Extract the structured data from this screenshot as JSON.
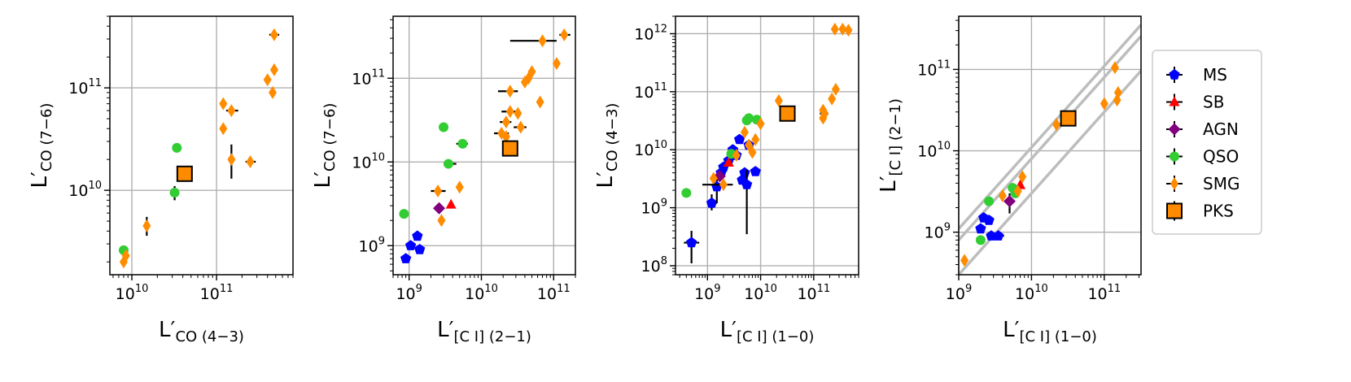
{
  "figure": {
    "type": "scatter-panels",
    "scale": "log-log"
  },
  "legend": {
    "placement": "right",
    "entries": [
      {
        "key": "MS",
        "label": "MS",
        "marker": "pentagon",
        "color": "#0000ff"
      },
      {
        "key": "SB",
        "label": "SB",
        "marker": "triangle",
        "color": "#ff0000"
      },
      {
        "key": "AGN",
        "label": "AGN",
        "marker": "diamond",
        "color": "#800080"
      },
      {
        "key": "QSO",
        "label": "QSO",
        "marker": "circle",
        "color": "#32cd32"
      },
      {
        "key": "SMG",
        "label": "SMG",
        "marker": "thin-diamond",
        "color": "#ff8c00"
      },
      {
        "key": "PKS",
        "label": "PKS",
        "marker": "square",
        "color": "#ff8c00"
      }
    ]
  },
  "chart_data": [
    {
      "type": "scatter",
      "xlabel": {
        "main": "L′",
        "sub": "CO (4−3)"
      },
      "ylabel": {
        "main": "L′",
        "sub": "CO (7−6)"
      },
      "xlim": [
        5500000000.0,
        800000000000.0
      ],
      "ylim": [
        1500000000.0,
        500000000000.0
      ],
      "xticks": [
        {
          "v": 10000000000.0,
          "base": "10",
          "exp": "10"
        },
        {
          "v": 100000000000.0,
          "base": "10",
          "exp": "11"
        }
      ],
      "yticks": [
        {
          "v": 10000000000.0,
          "base": "10",
          "exp": "10"
        },
        {
          "v": 100000000000.0,
          "base": "10",
          "exp": "11"
        }
      ],
      "diagonals": [],
      "series": {
        "QSO": [
          {
            "x": 8000000000.0,
            "y": 2600000000.0
          },
          {
            "x": 34000000000.0,
            "y": 26000000000.0
          },
          {
            "x": 32000000000.0,
            "y": 9500000000.0,
            "yerr": [
              8000000000.0,
              11000000000.0
            ]
          }
        ],
        "SMG": [
          {
            "x": 8000000000.0,
            "y": 2000000000.0
          },
          {
            "x": 8500000000.0,
            "y": 2300000000.0
          },
          {
            "x": 15000000000.0,
            "y": 4500000000.0,
            "yerr": [
              3600000000.0,
              5500000000.0
            ]
          },
          {
            "x": 120000000000.0,
            "y": 70000000000.0
          },
          {
            "x": 120000000000.0,
            "y": 40000000000.0
          },
          {
            "x": 150000000000.0,
            "y": 60000000000.0,
            "xerr": [
              130000000000.0,
              180000000000.0
            ]
          },
          {
            "x": 150000000000.0,
            "y": 20000000000.0,
            "yerr": [
              13000000000.0,
              28000000000.0
            ]
          },
          {
            "x": 250000000000.0,
            "y": 19000000000.0,
            "xerr": [
              220000000000.0,
              290000000000.0
            ]
          },
          {
            "x": 400000000000.0,
            "y": 120000000000.0
          },
          {
            "x": 460000000000.0,
            "y": 90000000000.0
          },
          {
            "x": 480000000000.0,
            "y": 150000000000.0
          },
          {
            "x": 480000000000.0,
            "y": 330000000000.0,
            "xerr": [
              420000000000.0,
              550000000000.0
            ]
          }
        ],
        "PKS": [
          {
            "x": 42000000000.0,
            "y": 14500000000.0
          }
        ]
      }
    },
    {
      "type": "scatter",
      "xlabel": {
        "main": "L′",
        "sub": "[C I] (2−1)"
      },
      "ylabel": {
        "main": "L′",
        "sub": "CO (7−6)"
      },
      "xlim": [
        600000000.0,
        200000000000.0
      ],
      "ylim": [
        450000000.0,
        550000000000.0
      ],
      "xticks": [
        {
          "v": 1000000000.0,
          "base": "10",
          "exp": "9"
        },
        {
          "v": 10000000000.0,
          "base": "10",
          "exp": "10"
        },
        {
          "v": 100000000000.0,
          "base": "10",
          "exp": "11"
        }
      ],
      "yticks": [
        {
          "v": 1000000000.0,
          "base": "10",
          "exp": "9"
        },
        {
          "v": 10000000000.0,
          "base": "10",
          "exp": "10"
        },
        {
          "v": 100000000000.0,
          "base": "10",
          "exp": "11"
        }
      ],
      "diagonals": [],
      "series": {
        "MS": [
          {
            "x": 900000000.0,
            "y": 700000000.0
          },
          {
            "x": 1050000000.0,
            "y": 1000000000.0
          },
          {
            "x": 1300000000.0,
            "y": 1300000000.0
          },
          {
            "x": 1400000000.0,
            "y": 900000000.0
          }
        ],
        "SB": [
          {
            "x": 3800000000.0,
            "y": 3100000000.0
          }
        ],
        "AGN": [
          {
            "x": 2600000000.0,
            "y": 2800000000.0
          }
        ],
        "QSO": [
          {
            "x": 850000000.0,
            "y": 2400000000.0
          },
          {
            "x": 3000000000.0,
            "y": 26000000000.0
          },
          {
            "x": 3500000000.0,
            "y": 9500000000.0,
            "xerr": [
              3000000000.0,
              4500000000.0
            ]
          },
          {
            "x": 5500000000.0,
            "y": 16500000000.0,
            "xerr": [
              4500000000.0,
              6500000000.0
            ]
          }
        ],
        "SMG": [
          {
            "x": 2500000000.0,
            "y": 4500000000.0,
            "xerr": [
              2000000000.0,
              3200000000.0
            ]
          },
          {
            "x": 2800000000.0,
            "y": 2000000000.0
          },
          {
            "x": 5000000000.0,
            "y": 5000000000.0
          },
          {
            "x": 19000000000.0,
            "y": 22000000000.0,
            "xerr": [
              15000000000.0,
              24000000000.0
            ]
          },
          {
            "x": 22000000000.0,
            "y": 20000000000.0
          },
          {
            "x": 22000000000.0,
            "y": 30000000000.0,
            "xerr": [
              18000000000.0,
              26000000000.0
            ]
          },
          {
            "x": 25000000000.0,
            "y": 40000000000.0,
            "xerr": [
              19000000000.0,
              30000000000.0
            ]
          },
          {
            "x": 25000000000.0,
            "y": 70000000000.0,
            "xerr": [
              17000000000.0,
              32000000000.0
            ]
          },
          {
            "x": 32000000000.0,
            "y": 38000000000.0
          },
          {
            "x": 35000000000.0,
            "y": 26000000000.0,
            "xerr": [
              28000000000.0,
              42000000000.0
            ]
          },
          {
            "x": 40000000000.0,
            "y": 90000000000.0
          },
          {
            "x": 50000000000.0,
            "y": 120000000000.0
          },
          {
            "x": 45000000000.0,
            "y": 100000000000.0
          },
          {
            "x": 65000000000.0,
            "y": 52000000000.0
          },
          {
            "x": 70000000000.0,
            "y": 280000000000.0,
            "xerr": [
              25000000000.0,
              110000000000.0
            ]
          },
          {
            "x": 110000000000.0,
            "y": 150000000000.0
          },
          {
            "x": 140000000000.0,
            "y": 330000000000.0,
            "xerr": [
              120000000000.0,
              170000000000.0
            ]
          }
        ],
        "PKS": [
          {
            "x": 25000000000.0,
            "y": 14500000000.0
          }
        ]
      }
    },
    {
      "type": "scatter",
      "xlabel": {
        "main": "L′",
        "sub": "[C I] (1−0)"
      },
      "ylabel": {
        "main": "L′",
        "sub": "CO (4−3)"
      },
      "xlim": [
        250000000.0,
        700000000000.0
      ],
      "ylim": [
        70000000.0,
        2000000000000.0
      ],
      "xticks": [
        {
          "v": 1000000000.0,
          "base": "10",
          "exp": "9"
        },
        {
          "v": 10000000000.0,
          "base": "10",
          "exp": "10"
        },
        {
          "v": 100000000000.0,
          "base": "10",
          "exp": "11"
        }
      ],
      "yticks": [
        {
          "v": 100000000.0,
          "base": "10",
          "exp": "8"
        },
        {
          "v": 1000000000.0,
          "base": "10",
          "exp": "9"
        },
        {
          "v": 10000000000.0,
          "base": "10",
          "exp": "10"
        },
        {
          "v": 100000000000.0,
          "base": "10",
          "exp": "11"
        },
        {
          "v": 1000000000000.0,
          "base": "10",
          "exp": "12"
        }
      ],
      "diagonals": [],
      "series": {
        "MS": [
          {
            "x": 500000000.0,
            "y": 250000000.0,
            "xerr": [
              360000000.0,
              700000000.0
            ],
            "yerr": [
              110000000.0,
              400000000.0
            ]
          },
          {
            "x": 1200000000.0,
            "y": 1200000000.0,
            "xerr": [
              1000000000.0,
              1500000000.0
            ],
            "yerr": [
              900000000.0,
              1700000000.0
            ]
          },
          {
            "x": 1500000000.0,
            "y": 2300000000.0,
            "yerr": [
              1200000000.0,
              3500000000.0
            ]
          },
          {
            "x": 1800000000.0,
            "y": 4000000000.0
          },
          {
            "x": 2000000000.0,
            "y": 5000000000.0
          },
          {
            "x": 2500000000.0,
            "y": 6500000000.0
          },
          {
            "x": 3500000000.0,
            "y": 8000000000.0
          },
          {
            "x": 4000000000.0,
            "y": 15000000000.0
          },
          {
            "x": 4500000000.0,
            "y": 3000000000.0
          },
          {
            "x": 5000000000.0,
            "y": 4000000000.0
          },
          {
            "x": 5500000000.0,
            "y": 2500000000.0,
            "yerr": [
              350000000.0,
              4500000000.0
            ]
          },
          {
            "x": 6000000000.0,
            "y": 12000000000.0
          },
          {
            "x": 8000000000.0,
            "y": 4200000000.0
          },
          {
            "x": 3000000000.0,
            "y": 10000000000.0
          }
        ],
        "SB": [
          {
            "x": 2500000000.0,
            "y": 6000000000.0
          }
        ],
        "AGN": [
          {
            "x": 1700000000.0,
            "y": 3500000000.0
          }
        ],
        "QSO": [
          {
            "x": 400000000.0,
            "y": 1800000000.0
          },
          {
            "x": 2800000000.0,
            "y": 8500000000.0
          },
          {
            "x": 5500000000.0,
            "y": 32000000000.0
          },
          {
            "x": 6000000000.0,
            "y": 35000000000.0
          },
          {
            "x": 8500000000.0,
            "y": 33000000000.0
          }
        ],
        "SMG": [
          {
            "x": 1300000000.0,
            "y": 3200000000.0
          },
          {
            "x": 2000000000.0,
            "y": 2500000000.0,
            "xerr": [
              800000000.0,
              3000000000.0
            ]
          },
          {
            "x": 3500000000.0,
            "y": 8000000000.0
          },
          {
            "x": 5000000000.0,
            "y": 20000000000.0
          },
          {
            "x": 6000000000.0,
            "y": 12000000000.0
          },
          {
            "x": 7000000000.0,
            "y": 9000000000.0
          },
          {
            "x": 8000000000.0,
            "y": 15000000000.0
          },
          {
            "x": 10000000000.0,
            "y": 28000000000.0
          },
          {
            "x": 22000000000.0,
            "y": 70000000000.0
          },
          {
            "x": 150000000000.0,
            "y": 35000000000.0
          },
          {
            "x": 150000000000.0,
            "y": 48000000000.0
          },
          {
            "x": 160000000000.0,
            "y": 42000000000.0,
            "xerr": [
              130000000000.0,
              190000000000.0
            ]
          },
          {
            "x": 220000000000.0,
            "y": 75000000000.0
          },
          {
            "x": 260000000000.0,
            "y": 110000000000.0
          },
          {
            "x": 350000000000.0,
            "y": 1200000000000.0
          },
          {
            "x": 450000000000.0,
            "y": 1150000000000.0
          },
          {
            "x": 250000000000.0,
            "y": 1200000000000.0
          }
        ],
        "PKS": [
          {
            "x": 32000000000.0,
            "y": 42000000000.0
          }
        ]
      }
    },
    {
      "type": "scatter",
      "xlabel": {
        "main": "L′",
        "sub": "[C I] (1−0)"
      },
      "ylabel": {
        "main": "L′",
        "sub": "[C I] (2−1)"
      },
      "xlim": [
        1000000000.0,
        320000000000.0
      ],
      "ylim": [
        300000000.0,
        450000000000.0
      ],
      "xticks": [
        {
          "v": 1000000000.0,
          "base": "10",
          "exp": "9"
        },
        {
          "v": 10000000000.0,
          "base": "10",
          "exp": "10"
        },
        {
          "v": 100000000000.0,
          "base": "10",
          "exp": "11"
        }
      ],
      "yticks": [
        {
          "v": 1000000000.0,
          "base": "10",
          "exp": "9"
        },
        {
          "v": 10000000000.0,
          "base": "10",
          "exp": "10"
        },
        {
          "v": 100000000000.0,
          "base": "10",
          "exp": "11"
        }
      ],
      "diagonals": [
        {
          "ratio": 1.1
        },
        {
          "ratio": 0.8
        },
        {
          "ratio": 0.3
        }
      ],
      "series": {
        "MS": [
          {
            "x": 2000000000.0,
            "y": 1100000000.0
          },
          {
            "x": 2200000000.0,
            "y": 1500000000.0
          },
          {
            "x": 2600000000.0,
            "y": 1400000000.0
          },
          {
            "x": 2800000000.0,
            "y": 900000000.0
          },
          {
            "x": 3500000000.0,
            "y": 900000000.0,
            "xerr": [
              3000000000.0,
              4200000000.0
            ]
          }
        ],
        "SB": [
          {
            "x": 7000000000.0,
            "y": 3800000000.0
          }
        ],
        "AGN": [
          {
            "x": 5000000000.0,
            "y": 2400000000.0,
            "yerr": [
              1700000000.0,
              3000000000.0
            ]
          }
        ],
        "QSO": [
          {
            "x": 2000000000.0,
            "y": 800000000.0
          },
          {
            "x": 2600000000.0,
            "y": 2400000000.0
          },
          {
            "x": 5500000000.0,
            "y": 3500000000.0
          },
          {
            "x": 6000000000.0,
            "y": 3000000000.0
          }
        ],
        "SMG": [
          {
            "x": 1200000000.0,
            "y": 450000000.0
          },
          {
            "x": 4000000000.0,
            "y": 2800000000.0
          },
          {
            "x": 6500000000.0,
            "y": 3200000000.0
          },
          {
            "x": 7500000000.0,
            "y": 4800000000.0
          },
          {
            "x": 22000000000.0,
            "y": 21000000000.0
          },
          {
            "x": 100000000000.0,
            "y": 38000000000.0
          },
          {
            "x": 140000000000.0,
            "y": 105000000000.0
          },
          {
            "x": 150000000000.0,
            "y": 42000000000.0
          },
          {
            "x": 155000000000.0,
            "y": 52000000000.0
          }
        ],
        "PKS": [
          {
            "x": 32000000000.0,
            "y": 25000000000.0
          }
        ]
      }
    }
  ]
}
